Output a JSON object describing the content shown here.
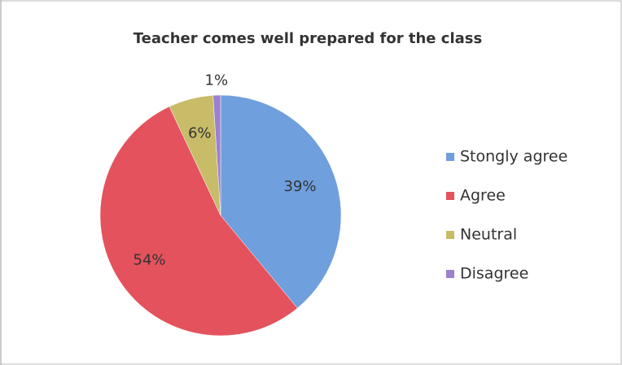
{
  "chart_data": {
    "type": "pie",
    "title": "Teacher comes well prepared for the class",
    "categories": [
      "Stongly agree",
      "Agree",
      "Neutral",
      "Disagree"
    ],
    "values": [
      39,
      54,
      6,
      1
    ],
    "value_labels": [
      "39%",
      "54%",
      "6%",
      "1%"
    ],
    "colors": [
      "#6f9fdc",
      "#e4525d",
      "#c8bc68",
      "#9d80cf"
    ],
    "legend": "right"
  }
}
